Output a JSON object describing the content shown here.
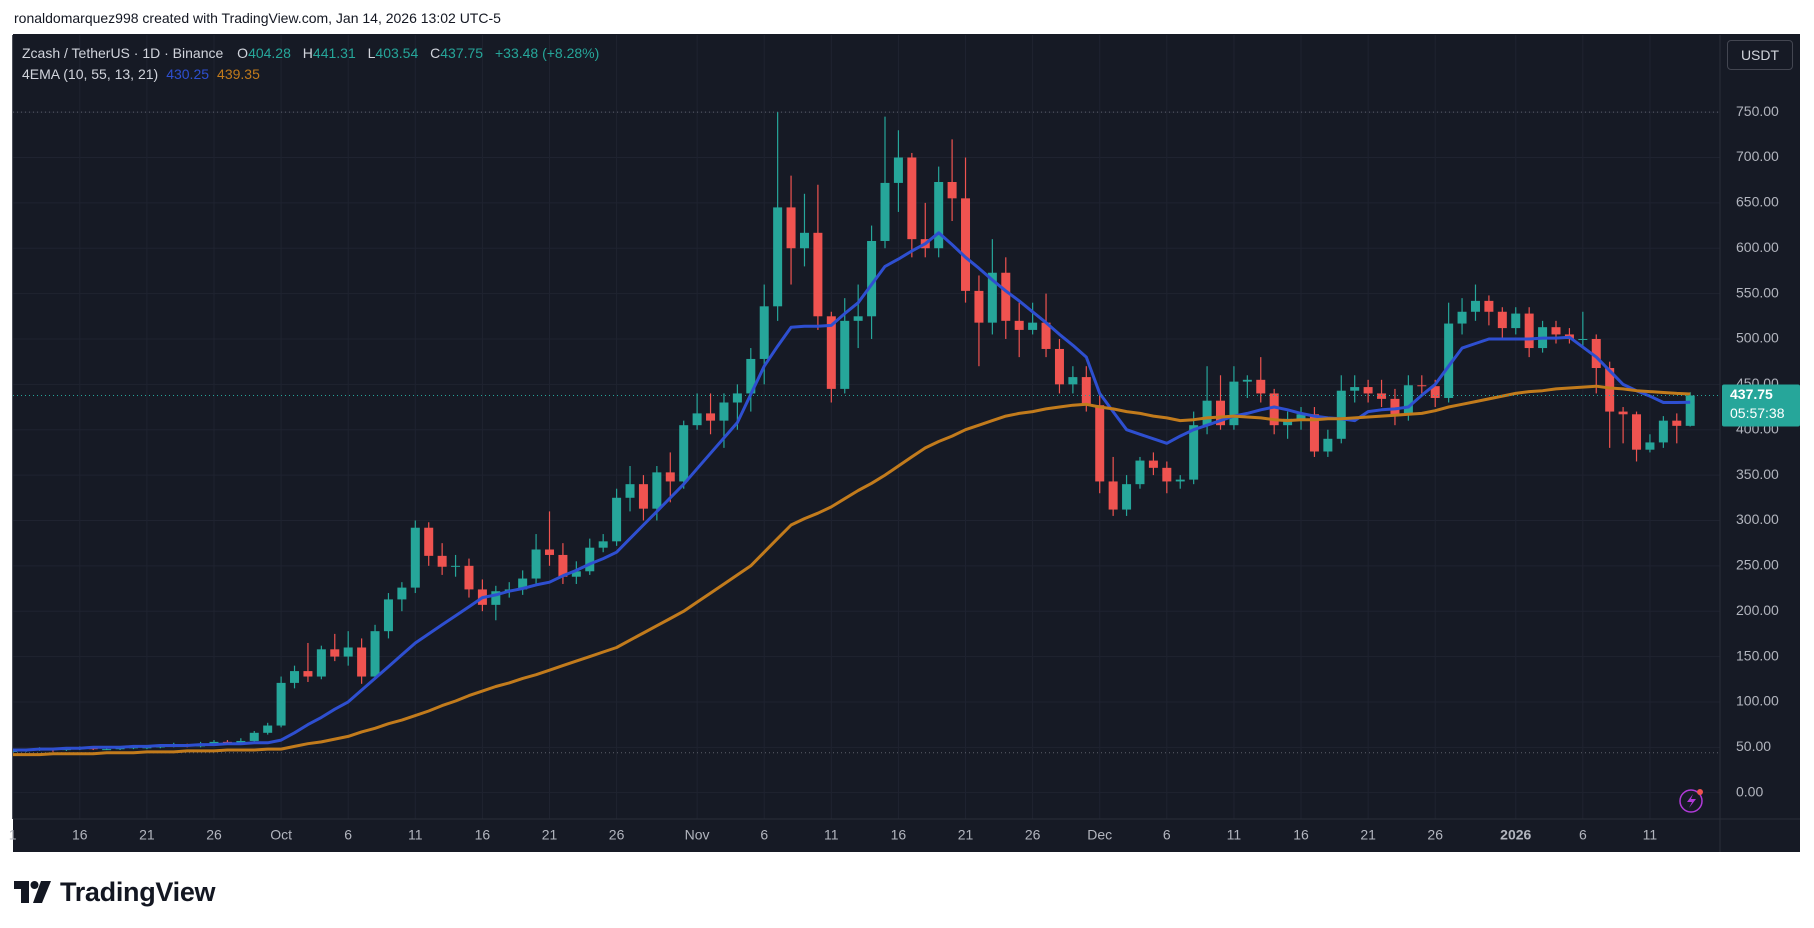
{
  "credit": "ronaldomarquez998 created with TradingView.com, Jan 14, 2026 13:02 UTC-5",
  "brand": "TradingView",
  "chart_data": {
    "type": "candlestick",
    "title": "Zcash / TetherUS · 1D · Binance",
    "ohlc_labels": [
      "O",
      "H",
      "L",
      "C"
    ],
    "change_label": "+33.48 (+8.28%)",
    "currency": "USDT",
    "countdown": "05:57:38",
    "up_color": "#26a69a",
    "down_color": "#ef5350",
    "grid": true,
    "categories": [
      "1",
      null,
      null,
      null,
      null,
      "16",
      null,
      null,
      null,
      null,
      "21",
      null,
      null,
      null,
      null,
      "26",
      null,
      null,
      null,
      null,
      "Oct",
      null,
      null,
      null,
      null,
      "6",
      null,
      null,
      null,
      null,
      "11",
      null,
      null,
      null,
      null,
      "16",
      null,
      null,
      null,
      null,
      "21",
      null,
      null,
      null,
      null,
      "26",
      null,
      null,
      null,
      null,
      null,
      "Nov",
      null,
      null,
      null,
      null,
      "6",
      null,
      null,
      null,
      null,
      "11",
      null,
      null,
      null,
      null,
      "16",
      null,
      null,
      null,
      null,
      "21",
      null,
      null,
      null,
      null,
      "26",
      null,
      null,
      null,
      null,
      "Dec",
      null,
      null,
      null,
      null,
      "6",
      null,
      null,
      null,
      null,
      "11",
      null,
      null,
      null,
      null,
      "16",
      null,
      null,
      null,
      null,
      "21",
      null,
      null,
      null,
      null,
      "26",
      null,
      null,
      null,
      null,
      null,
      "2026",
      null,
      null,
      null,
      null,
      "6",
      null,
      null,
      null,
      null,
      "11",
      null,
      null,
      null
    ],
    "open": [
      45,
      46,
      47,
      48,
      47,
      48,
      49,
      48,
      48,
      49,
      50,
      50,
      51,
      52,
      51,
      54,
      56,
      55,
      57,
      66,
      74,
      121,
      134,
      128,
      158,
      150,
      160,
      128,
      178,
      213,
      226,
      292,
      261,
      249,
      250,
      224,
      207,
      222,
      224,
      236,
      268,
      262,
      238,
      244,
      270,
      277,
      325,
      340,
      313,
      353,
      343,
      405,
      418,
      410,
      430,
      440,
      478,
      536,
      645,
      600,
      617,
      525,
      445,
      520,
      525,
      608,
      672,
      700,
      610,
      600,
      673,
      655,
      553,
      518,
      573,
      520,
      510,
      518,
      489,
      450,
      458,
      427,
      343,
      312,
      340,
      366,
      358,
      343,
      345,
      405,
      432,
      405,
      453,
      455,
      440,
      405,
      412,
      417,
      376,
      390,
      443,
      447,
      440,
      434,
      417,
      449,
      448,
      435,
      517,
      530,
      542,
      530,
      512,
      528,
      490,
      513,
      505,
      500,
      500,
      468,
      420,
      417,
      378,
      386,
      410,
      404.28
    ],
    "high": [
      48,
      48,
      50,
      49,
      50,
      51,
      50,
      50,
      51,
      52,
      52,
      53,
      55,
      54,
      56,
      58,
      58,
      60,
      68,
      77,
      128,
      140,
      165,
      162,
      175,
      178,
      170,
      185,
      220,
      232,
      300,
      298,
      275,
      262,
      258,
      235,
      228,
      232,
      245,
      285,
      310,
      275,
      255,
      280,
      285,
      335,
      360,
      350,
      360,
      375,
      410,
      440,
      440,
      440,
      450,
      490,
      560,
      750,
      680,
      660,
      670,
      530,
      545,
      560,
      625,
      745,
      730,
      705,
      650,
      690,
      720,
      700,
      570,
      610,
      590,
      540,
      540,
      550,
      500,
      470,
      470,
      440,
      370,
      350,
      370,
      375,
      365,
      350,
      420,
      470,
      460,
      470,
      460,
      480,
      445,
      420,
      425,
      425,
      400,
      460,
      460,
      455,
      455,
      445,
      460,
      460,
      455,
      540,
      545,
      560,
      548,
      535,
      535,
      535,
      520,
      520,
      512,
      530,
      505,
      475,
      425,
      420,
      395,
      415,
      418,
      441.31
    ],
    "low": [
      44,
      45,
      46,
      45,
      46,
      47,
      47,
      47,
      47,
      48,
      48,
      49,
      50,
      50,
      50,
      53,
      53,
      54,
      56,
      64,
      72,
      115,
      122,
      125,
      145,
      140,
      120,
      125,
      170,
      200,
      220,
      250,
      240,
      238,
      215,
      200,
      190,
      215,
      218,
      230,
      250,
      230,
      230,
      240,
      265,
      272,
      310,
      300,
      300,
      320,
      335,
      400,
      395,
      380,
      400,
      420,
      450,
      520,
      560,
      580,
      510,
      430,
      440,
      490,
      500,
      600,
      640,
      590,
      590,
      590,
      630,
      540,
      470,
      505,
      500,
      480,
      505,
      480,
      440,
      440,
      420,
      330,
      305,
      305,
      335,
      350,
      330,
      335,
      340,
      395,
      400,
      400,
      435,
      430,
      395,
      390,
      400,
      370,
      370,
      385,
      430,
      430,
      425,
      405,
      410,
      440,
      425,
      430,
      505,
      520,
      515,
      500,
      505,
      480,
      485,
      495,
      495,
      490,
      440,
      380,
      385,
      365,
      375,
      380,
      385,
      403.54
    ],
    "close": [
      46,
      47,
      48,
      47,
      48,
      49,
      48,
      48,
      49,
      50,
      50,
      51,
      52,
      51,
      54,
      56,
      55,
      57,
      66,
      74,
      121,
      134,
      128,
      158,
      150,
      160,
      128,
      178,
      213,
      226,
      292,
      261,
      249,
      250,
      224,
      207,
      222,
      224,
      236,
      268,
      262,
      238,
      244,
      270,
      277,
      325,
      340,
      313,
      353,
      343,
      405,
      418,
      410,
      430,
      440,
      478,
      536,
      645,
      600,
      617,
      525,
      445,
      520,
      525,
      608,
      672,
      700,
      610,
      600,
      673,
      655,
      553,
      518,
      573,
      520,
      510,
      518,
      489,
      450,
      458,
      427,
      343,
      312,
      340,
      366,
      358,
      343,
      345,
      405,
      432,
      405,
      453,
      455,
      440,
      405,
      412,
      417,
      376,
      390,
      443,
      447,
      440,
      434,
      417,
      449,
      448,
      435,
      517,
      530,
      542,
      530,
      512,
      528,
      490,
      513,
      505,
      500,
      500,
      468,
      420,
      417,
      378,
      386,
      410,
      404.28,
      437.75
    ],
    "indicator": {
      "name": "4EMA (10, 55, 13, 21)",
      "lines": [
        {
          "color": "#2e4fd0",
          "values": [
            47,
            47,
            48,
            48,
            49,
            49,
            50,
            50,
            50,
            51,
            51,
            52,
            52,
            52,
            53,
            53,
            54,
            54,
            55,
            55,
            58,
            66,
            75,
            83,
            92,
            100,
            113,
            126,
            139,
            152,
            165,
            175,
            185,
            195,
            205,
            215,
            218,
            222,
            225,
            229,
            232,
            239,
            245,
            252,
            258,
            265,
            280,
            295,
            310,
            325,
            340,
            357,
            374,
            391,
            408,
            439,
            470,
            492,
            513,
            514,
            514,
            515,
            528,
            540,
            560,
            580,
            588,
            597,
            605,
            617,
            604,
            590,
            578,
            565,
            553,
            542,
            530,
            518,
            505,
            493,
            480,
            440,
            420,
            400,
            395,
            390,
            385,
            393,
            400,
            405,
            410,
            415,
            418,
            422,
            425,
            422,
            418,
            415,
            413,
            412,
            410,
            420,
            422,
            423,
            425,
            438,
            450,
            470,
            490,
            495,
            500,
            500,
            500,
            500,
            501,
            501,
            502,
            491,
            480,
            465,
            450,
            443,
            437,
            430,
            430,
            430.25
          ]
        },
        {
          "color": "#c27b1c",
          "values": [
            42,
            42,
            42,
            43,
            43,
            43,
            43,
            44,
            44,
            44,
            45,
            45,
            45,
            46,
            46,
            46,
            47,
            47,
            47,
            48,
            48,
            51,
            54,
            56,
            59,
            62,
            67,
            71,
            76,
            80,
            85,
            90,
            96,
            101,
            107,
            112,
            117,
            121,
            126,
            130,
            135,
            140,
            145,
            150,
            155,
            160,
            168,
            176,
            184,
            192,
            200,
            210,
            220,
            230,
            240,
            250,
            265,
            280,
            295,
            302,
            308,
            315,
            324,
            333,
            341,
            350,
            360,
            370,
            380,
            387,
            393,
            400,
            405,
            410,
            415,
            418,
            420,
            423,
            425,
            427,
            428,
            425,
            423,
            420,
            418,
            415,
            413,
            410,
            411,
            413,
            414,
            415,
            414,
            413,
            411,
            410,
            411,
            411,
            412,
            412,
            413,
            414,
            415,
            416,
            417,
            418,
            421,
            425,
            428,
            431,
            434,
            437,
            440,
            442,
            443,
            445,
            446,
            447,
            448,
            446,
            445,
            443,
            442,
            441,
            440,
            439.35
          ]
        }
      ]
    },
    "ylim": [
      -29,
      835
    ],
    "yticks": [
      {
        "value": 0,
        "label": "0.00"
      },
      {
        "value": 50,
        "label": "50.00"
      },
      {
        "value": 100,
        "label": "100.00"
      },
      {
        "value": 150,
        "label": "150.00"
      },
      {
        "value": 200,
        "label": "200.00"
      },
      {
        "value": 250,
        "label": "250.00"
      },
      {
        "value": 300,
        "label": "300.00"
      },
      {
        "value": 350,
        "label": "350.00"
      },
      {
        "value": 400,
        "label": "400.00"
      },
      {
        "value": 450,
        "label": "450.00"
      },
      {
        "value": 500,
        "label": "500.00"
      },
      {
        "value": 550,
        "label": "550.00"
      },
      {
        "value": 600,
        "label": "600.00"
      },
      {
        "value": 650,
        "label": "650.00"
      },
      {
        "value": 700,
        "label": "700.00"
      },
      {
        "value": 750,
        "label": "750.00"
      }
    ]
  }
}
